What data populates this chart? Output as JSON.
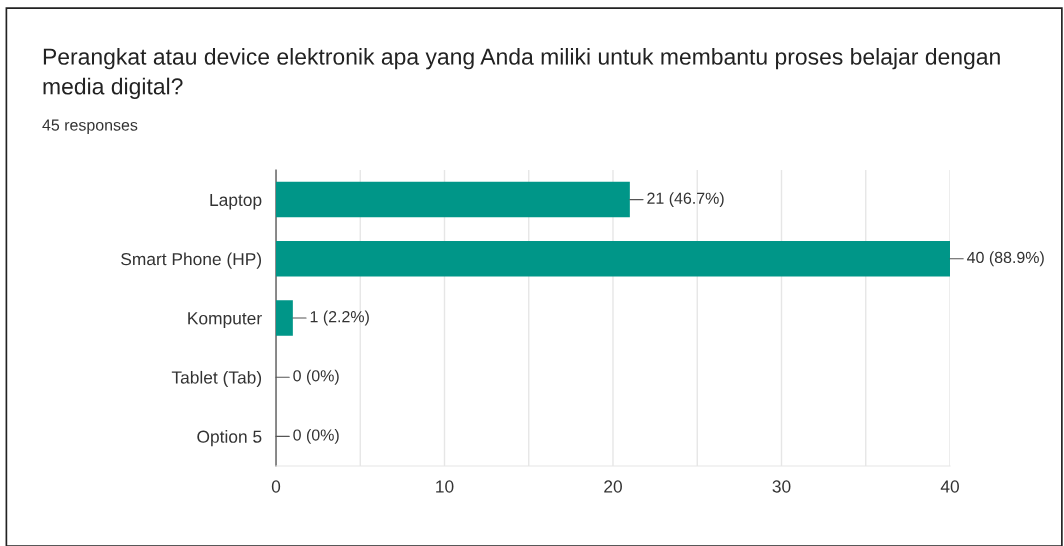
{
  "chart_data": {
    "type": "bar",
    "orientation": "horizontal",
    "title": "Perangkat atau device elektronik apa yang Anda miliki untuk membantu proses belajar dengan media digital?",
    "subtitle": "45 responses",
    "categories": [
      "Laptop",
      "Smart Phone (HP)",
      "Komputer",
      "Tablet (Tab)",
      "Option 5"
    ],
    "values": [
      21,
      40,
      1,
      0,
      0
    ],
    "value_labels": [
      "21 (46.7%)",
      "40 (88.9%)",
      "1 (2.2%)",
      "0 (0%)",
      "0 (0%)"
    ],
    "color": "#009688",
    "xlim": [
      0,
      40
    ],
    "xticks": [
      0,
      {
        "value": 5,
        "label": null
      },
      10,
      {
        "value": 15,
        "label": null
      },
      20,
      {
        "value": 25,
        "label": null
      },
      30,
      {
        "value": 35,
        "label": null
      },
      40
    ],
    "grid": "x",
    "legend": false
  }
}
